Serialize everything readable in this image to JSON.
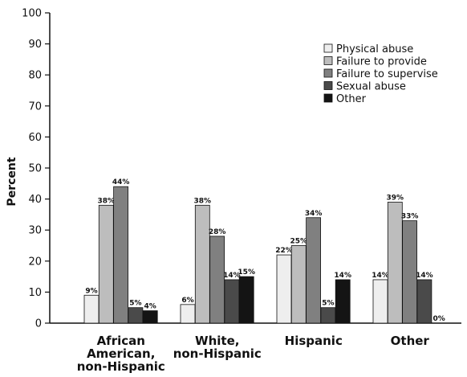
{
  "chart_data": {
    "type": "bar",
    "title": "",
    "xlabel": "",
    "ylabel": "Percent",
    "ylim": [
      0,
      100
    ],
    "yticks": [
      "0",
      "10",
      "20",
      "30",
      "40",
      "50",
      "60",
      "70",
      "80",
      "90",
      "100"
    ],
    "grid": false,
    "legend_position": "top-right",
    "categories": [
      [
        "African",
        "American,",
        "non-Hispanic"
      ],
      [
        "White,",
        "non-Hispanic"
      ],
      [
        "Hispanic"
      ],
      [
        "Other"
      ]
    ],
    "series": [
      {
        "name": "Physical abuse",
        "color": "#eeeeee",
        "values": [
          9,
          6,
          22,
          14
        ],
        "labels": [
          "9%",
          "6%",
          "22%",
          "14%"
        ]
      },
      {
        "name": "Failure to provide",
        "color": "#bdbdbd",
        "values": [
          38,
          38,
          25,
          39
        ],
        "labels": [
          "38%",
          "38%",
          "25%",
          "39%"
        ]
      },
      {
        "name": "Failure to supervise",
        "color": "#808080",
        "values": [
          44,
          28,
          34,
          33
        ],
        "labels": [
          "44%",
          "28%",
          "34%",
          "33%"
        ]
      },
      {
        "name": "Sexual abuse",
        "color": "#4a4a4a",
        "values": [
          5,
          14,
          5,
          14
        ],
        "labels": [
          "5%",
          "14%",
          "5%",
          "14%"
        ]
      },
      {
        "name": "Other",
        "color": "#141414",
        "values": [
          4,
          15,
          14,
          0
        ],
        "labels": [
          "4%",
          "15%",
          "14%",
          "0%"
        ]
      }
    ]
  }
}
